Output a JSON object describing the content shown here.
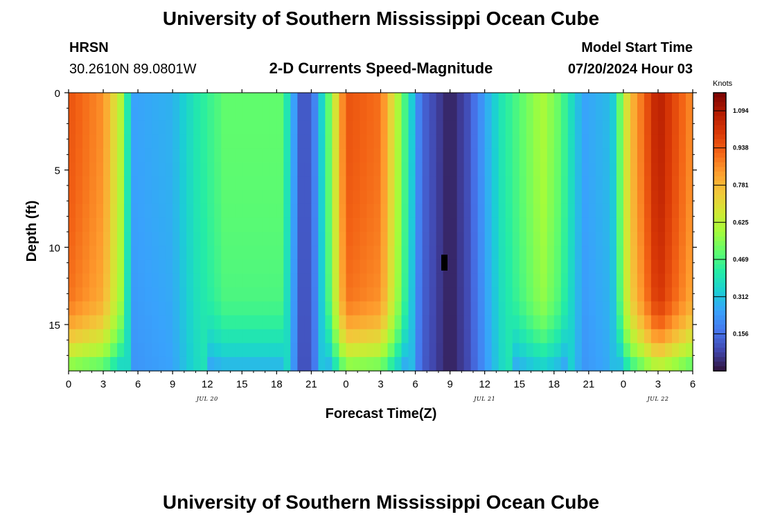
{
  "header": {
    "title": "University of Southern Mississippi Ocean Cube",
    "station": "HRSN",
    "coords": "30.2610N  89.0801W",
    "subtitle": "2-D Currents Speed-Magnitude",
    "model_label": "Model Start Time",
    "model_time": "07/20/2024 Hour 03"
  },
  "footer": {
    "title": "University of Southern Mississippi Ocean Cube"
  },
  "chart_data": {
    "type": "heatmap",
    "title": "2-D Currents Speed-Magnitude",
    "xlabel": "Forecast Time(Z)",
    "ylabel": "Depth (ft)",
    "x_range_hours": [
      0,
      54
    ],
    "y_range_ft": [
      0,
      18
    ],
    "x_ticks": [
      "0",
      "3",
      "6",
      "9",
      "12",
      "15",
      "18",
      "21",
      "0",
      "3",
      "6",
      "9",
      "12",
      "15",
      "18",
      "21",
      "0",
      "3",
      "6"
    ],
    "y_ticks": [
      "0",
      "5",
      "10",
      "15"
    ],
    "dates": [
      {
        "hour": 12,
        "label": "JUL 20"
      },
      {
        "hour": 36,
        "label": "JUL 21"
      },
      {
        "hour": 51,
        "label": "JUL 22"
      }
    ],
    "colorbar": {
      "title": "Knots",
      "min": 0.0,
      "max": 1.17,
      "labels": [
        "1.094",
        "0.938",
        "0.781",
        "0.625",
        "0.469",
        "0.312",
        "0.156"
      ],
      "label_values": [
        1.094,
        0.938,
        0.781,
        0.625,
        0.469,
        0.312,
        0.156
      ],
      "colors": [
        "#30123b",
        "#4145ab",
        "#4675ed",
        "#39a2fc",
        "#1bcfd4",
        "#24eca6",
        "#61fc6c",
        "#a4fc3b",
        "#d1e834",
        "#f3c63a",
        "#fe9b2d",
        "#f36315",
        "#d93806",
        "#b11901",
        "#7a0403"
      ]
    },
    "surface_speed_profile": [
      {
        "hour": 0,
        "speed": 0.95
      },
      {
        "hour": 3,
        "speed": 0.85
      },
      {
        "hour": 4.6,
        "speed": 0.6
      },
      {
        "hour": 5.5,
        "speed": 0.25
      },
      {
        "hour": 9,
        "speed": 0.28
      },
      {
        "hour": 11,
        "speed": 0.4
      },
      {
        "hour": 13.5,
        "speed": 0.5
      },
      {
        "hour": 18.5,
        "speed": 0.5
      },
      {
        "hour": 20,
        "speed": 0.12
      },
      {
        "hour": 21,
        "speed": 0.12
      },
      {
        "hour": 22.5,
        "speed": 0.5
      },
      {
        "hour": 24,
        "speed": 0.95
      },
      {
        "hour": 27,
        "speed": 0.9
      },
      {
        "hour": 28.5,
        "speed": 0.6
      },
      {
        "hour": 30.5,
        "speed": 0.15
      },
      {
        "hour": 33,
        "speed": 0.02
      },
      {
        "hour": 34.5,
        "speed": 0.1
      },
      {
        "hour": 37.5,
        "speed": 0.4
      },
      {
        "hour": 41,
        "speed": 0.6
      },
      {
        "hour": 42.5,
        "speed": 0.5
      },
      {
        "hour": 44.5,
        "speed": 0.25
      },
      {
        "hour": 47,
        "speed": 0.3
      },
      {
        "hour": 48.5,
        "speed": 0.75
      },
      {
        "hour": 51,
        "speed": 1.08
      },
      {
        "hour": 54,
        "speed": 0.85
      }
    ]
  }
}
